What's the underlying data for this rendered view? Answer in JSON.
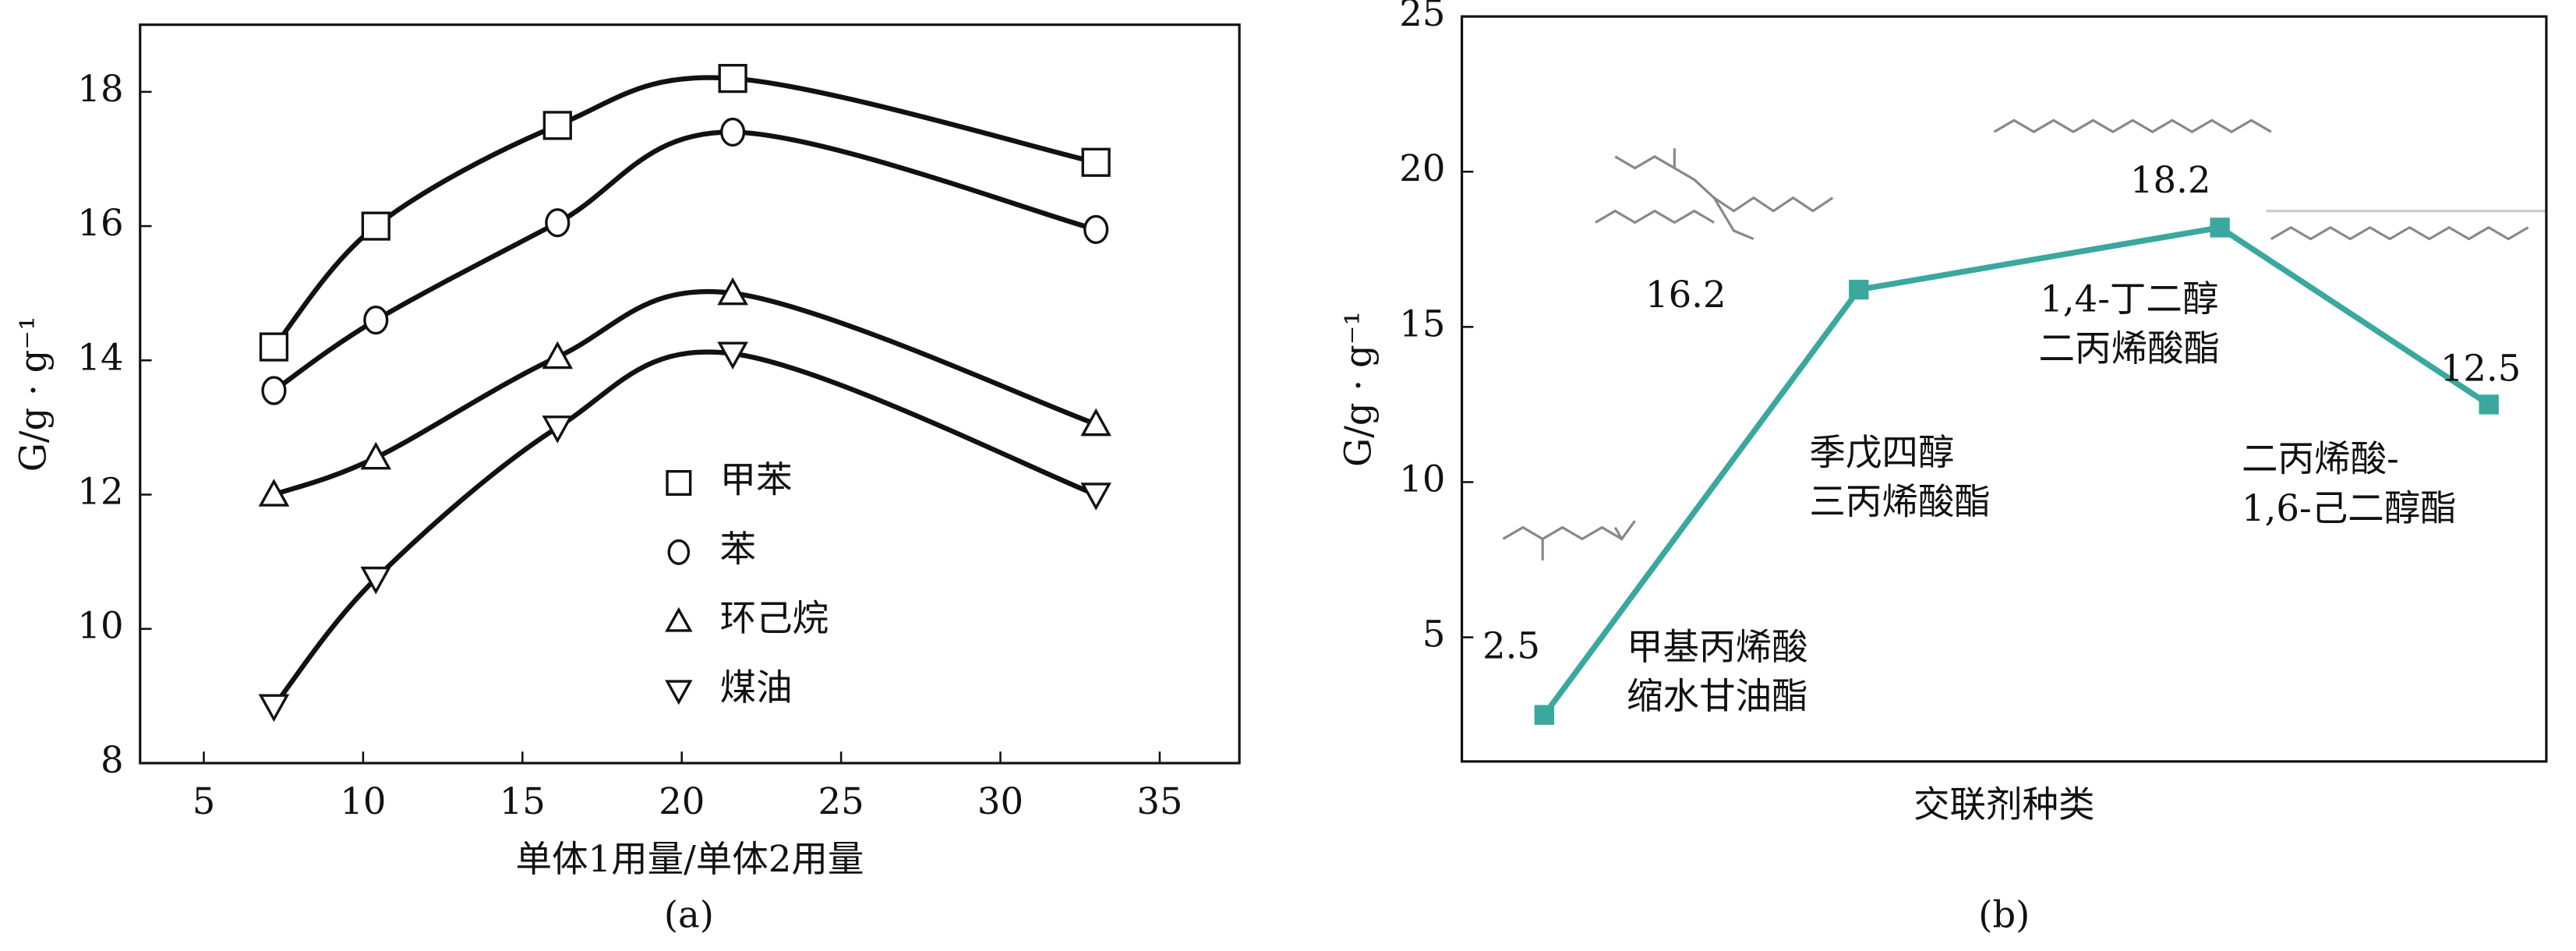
{
  "chart_data": [
    {
      "type": "scatter",
      "caption": "(a)",
      "xlabel": "单体1用量/单体2用量",
      "ylabel": "G/g · g⁻¹",
      "xlim": [
        3,
        37.5
      ],
      "ylim": [
        8,
        19
      ],
      "xticks": [
        5,
        10,
        15,
        20,
        25,
        30,
        35
      ],
      "yticks": [
        8,
        10,
        12,
        14,
        16,
        18
      ],
      "legend": "lower center",
      "color": "#111111",
      "series": [
        {
          "name": "甲苯",
          "marker": "square",
          "x": [
            7.2,
            10.4,
            16.1,
            21.6,
            33
          ],
          "values": [
            14.2,
            16.0,
            17.5,
            18.2,
            16.95
          ]
        },
        {
          "name": "苯",
          "marker": "circle",
          "x": [
            7.2,
            10.4,
            16.1,
            21.6,
            33
          ],
          "values": [
            13.55,
            14.6,
            16.05,
            17.4,
            15.95
          ]
        },
        {
          "name": "环己烷",
          "marker": "triangle-up",
          "x": [
            7.2,
            10.4,
            16.1,
            21.6,
            33
          ],
          "values": [
            12.0,
            12.55,
            14.05,
            15.0,
            13.05
          ]
        },
        {
          "name": "煤油",
          "marker": "triangle-down",
          "x": [
            7.2,
            10.4,
            16.1,
            21.6,
            33
          ],
          "values": [
            8.85,
            10.75,
            13.0,
            14.1,
            12.0
          ]
        }
      ]
    },
    {
      "type": "line",
      "caption": "(b)",
      "xlabel": "交联剂种类",
      "ylabel": "G/g · g⁻¹",
      "ylim": [
        1,
        25
      ],
      "yticks": [
        5,
        10,
        15,
        20,
        25
      ],
      "color": "#3aa89e",
      "categories": [
        "甲基丙烯酸\n缩水甘油酯",
        "季戊四醇\n三丙烯酸酯",
        "1,4-丁二醇\n二丙烯酸酯",
        "二丙烯酸-\n1,6-己二醇酯"
      ],
      "values": [
        2.5,
        16.2,
        18.2,
        12.5
      ]
    }
  ]
}
